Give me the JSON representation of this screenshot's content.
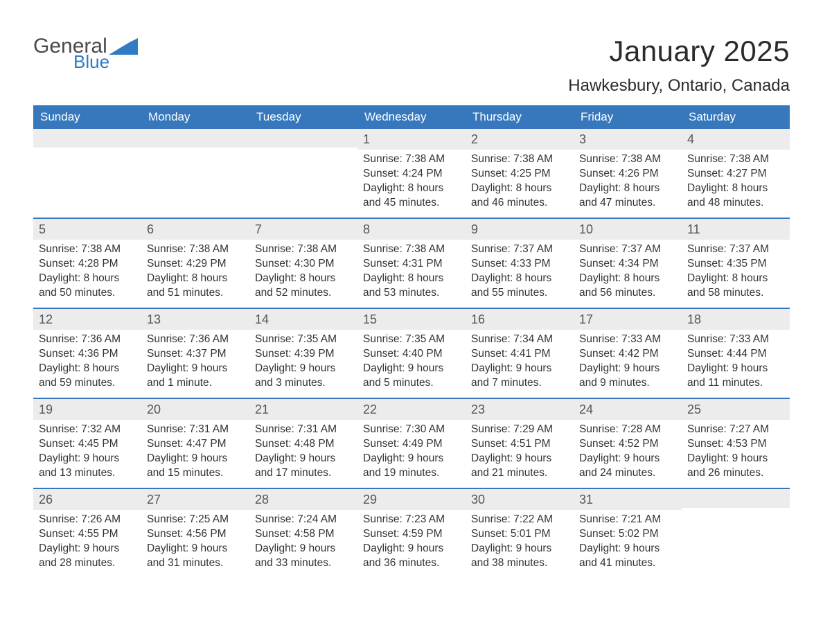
{
  "brand": {
    "word1": "General",
    "word2": "Blue",
    "word1_color": "#4a4a4a",
    "word2_color": "#2f7bc4",
    "mark_color": "#2f7bc4"
  },
  "title": "January 2025",
  "location": "Hawkesbury, Ontario, Canada",
  "colors": {
    "header_bg": "#3778bd",
    "header_text": "#ffffff",
    "strip_bg": "#ececec",
    "row_border": "#3778bd",
    "body_text": "#333333",
    "daynum_text": "#555555",
    "page_bg": "#ffffff"
  },
  "weekdays": [
    "Sunday",
    "Monday",
    "Tuesday",
    "Wednesday",
    "Thursday",
    "Friday",
    "Saturday"
  ],
  "weeks": [
    [
      {
        "day": "",
        "sunrise": "",
        "sunset": "",
        "daylight1": "",
        "daylight2": ""
      },
      {
        "day": "",
        "sunrise": "",
        "sunset": "",
        "daylight1": "",
        "daylight2": ""
      },
      {
        "day": "",
        "sunrise": "",
        "sunset": "",
        "daylight1": "",
        "daylight2": ""
      },
      {
        "day": "1",
        "sunrise": "Sunrise: 7:38 AM",
        "sunset": "Sunset: 4:24 PM",
        "daylight1": "Daylight: 8 hours",
        "daylight2": "and 45 minutes."
      },
      {
        "day": "2",
        "sunrise": "Sunrise: 7:38 AM",
        "sunset": "Sunset: 4:25 PM",
        "daylight1": "Daylight: 8 hours",
        "daylight2": "and 46 minutes."
      },
      {
        "day": "3",
        "sunrise": "Sunrise: 7:38 AM",
        "sunset": "Sunset: 4:26 PM",
        "daylight1": "Daylight: 8 hours",
        "daylight2": "and 47 minutes."
      },
      {
        "day": "4",
        "sunrise": "Sunrise: 7:38 AM",
        "sunset": "Sunset: 4:27 PM",
        "daylight1": "Daylight: 8 hours",
        "daylight2": "and 48 minutes."
      }
    ],
    [
      {
        "day": "5",
        "sunrise": "Sunrise: 7:38 AM",
        "sunset": "Sunset: 4:28 PM",
        "daylight1": "Daylight: 8 hours",
        "daylight2": "and 50 minutes."
      },
      {
        "day": "6",
        "sunrise": "Sunrise: 7:38 AM",
        "sunset": "Sunset: 4:29 PM",
        "daylight1": "Daylight: 8 hours",
        "daylight2": "and 51 minutes."
      },
      {
        "day": "7",
        "sunrise": "Sunrise: 7:38 AM",
        "sunset": "Sunset: 4:30 PM",
        "daylight1": "Daylight: 8 hours",
        "daylight2": "and 52 minutes."
      },
      {
        "day": "8",
        "sunrise": "Sunrise: 7:38 AM",
        "sunset": "Sunset: 4:31 PM",
        "daylight1": "Daylight: 8 hours",
        "daylight2": "and 53 minutes."
      },
      {
        "day": "9",
        "sunrise": "Sunrise: 7:37 AM",
        "sunset": "Sunset: 4:33 PM",
        "daylight1": "Daylight: 8 hours",
        "daylight2": "and 55 minutes."
      },
      {
        "day": "10",
        "sunrise": "Sunrise: 7:37 AM",
        "sunset": "Sunset: 4:34 PM",
        "daylight1": "Daylight: 8 hours",
        "daylight2": "and 56 minutes."
      },
      {
        "day": "11",
        "sunrise": "Sunrise: 7:37 AM",
        "sunset": "Sunset: 4:35 PM",
        "daylight1": "Daylight: 8 hours",
        "daylight2": "and 58 minutes."
      }
    ],
    [
      {
        "day": "12",
        "sunrise": "Sunrise: 7:36 AM",
        "sunset": "Sunset: 4:36 PM",
        "daylight1": "Daylight: 8 hours",
        "daylight2": "and 59 minutes."
      },
      {
        "day": "13",
        "sunrise": "Sunrise: 7:36 AM",
        "sunset": "Sunset: 4:37 PM",
        "daylight1": "Daylight: 9 hours",
        "daylight2": "and 1 minute."
      },
      {
        "day": "14",
        "sunrise": "Sunrise: 7:35 AM",
        "sunset": "Sunset: 4:39 PM",
        "daylight1": "Daylight: 9 hours",
        "daylight2": "and 3 minutes."
      },
      {
        "day": "15",
        "sunrise": "Sunrise: 7:35 AM",
        "sunset": "Sunset: 4:40 PM",
        "daylight1": "Daylight: 9 hours",
        "daylight2": "and 5 minutes."
      },
      {
        "day": "16",
        "sunrise": "Sunrise: 7:34 AM",
        "sunset": "Sunset: 4:41 PM",
        "daylight1": "Daylight: 9 hours",
        "daylight2": "and 7 minutes."
      },
      {
        "day": "17",
        "sunrise": "Sunrise: 7:33 AM",
        "sunset": "Sunset: 4:42 PM",
        "daylight1": "Daylight: 9 hours",
        "daylight2": "and 9 minutes."
      },
      {
        "day": "18",
        "sunrise": "Sunrise: 7:33 AM",
        "sunset": "Sunset: 4:44 PM",
        "daylight1": "Daylight: 9 hours",
        "daylight2": "and 11 minutes."
      }
    ],
    [
      {
        "day": "19",
        "sunrise": "Sunrise: 7:32 AM",
        "sunset": "Sunset: 4:45 PM",
        "daylight1": "Daylight: 9 hours",
        "daylight2": "and 13 minutes."
      },
      {
        "day": "20",
        "sunrise": "Sunrise: 7:31 AM",
        "sunset": "Sunset: 4:47 PM",
        "daylight1": "Daylight: 9 hours",
        "daylight2": "and 15 minutes."
      },
      {
        "day": "21",
        "sunrise": "Sunrise: 7:31 AM",
        "sunset": "Sunset: 4:48 PM",
        "daylight1": "Daylight: 9 hours",
        "daylight2": "and 17 minutes."
      },
      {
        "day": "22",
        "sunrise": "Sunrise: 7:30 AM",
        "sunset": "Sunset: 4:49 PM",
        "daylight1": "Daylight: 9 hours",
        "daylight2": "and 19 minutes."
      },
      {
        "day": "23",
        "sunrise": "Sunrise: 7:29 AM",
        "sunset": "Sunset: 4:51 PM",
        "daylight1": "Daylight: 9 hours",
        "daylight2": "and 21 minutes."
      },
      {
        "day": "24",
        "sunrise": "Sunrise: 7:28 AM",
        "sunset": "Sunset: 4:52 PM",
        "daylight1": "Daylight: 9 hours",
        "daylight2": "and 24 minutes."
      },
      {
        "day": "25",
        "sunrise": "Sunrise: 7:27 AM",
        "sunset": "Sunset: 4:53 PM",
        "daylight1": "Daylight: 9 hours",
        "daylight2": "and 26 minutes."
      }
    ],
    [
      {
        "day": "26",
        "sunrise": "Sunrise: 7:26 AM",
        "sunset": "Sunset: 4:55 PM",
        "daylight1": "Daylight: 9 hours",
        "daylight2": "and 28 minutes."
      },
      {
        "day": "27",
        "sunrise": "Sunrise: 7:25 AM",
        "sunset": "Sunset: 4:56 PM",
        "daylight1": "Daylight: 9 hours",
        "daylight2": "and 31 minutes."
      },
      {
        "day": "28",
        "sunrise": "Sunrise: 7:24 AM",
        "sunset": "Sunset: 4:58 PM",
        "daylight1": "Daylight: 9 hours",
        "daylight2": "and 33 minutes."
      },
      {
        "day": "29",
        "sunrise": "Sunrise: 7:23 AM",
        "sunset": "Sunset: 4:59 PM",
        "daylight1": "Daylight: 9 hours",
        "daylight2": "and 36 minutes."
      },
      {
        "day": "30",
        "sunrise": "Sunrise: 7:22 AM",
        "sunset": "Sunset: 5:01 PM",
        "daylight1": "Daylight: 9 hours",
        "daylight2": "and 38 minutes."
      },
      {
        "day": "31",
        "sunrise": "Sunrise: 7:21 AM",
        "sunset": "Sunset: 5:02 PM",
        "daylight1": "Daylight: 9 hours",
        "daylight2": "and 41 minutes."
      },
      {
        "day": "",
        "sunrise": "",
        "sunset": "",
        "daylight1": "",
        "daylight2": ""
      }
    ]
  ]
}
